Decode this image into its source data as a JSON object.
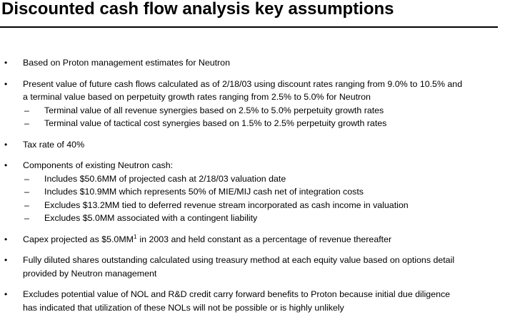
{
  "title": "Discounted cash flow analysis key assumptions",
  "items": [
    {
      "lines": [
        "Based on Proton management estimates for Neutron"
      ]
    },
    {
      "lines": [
        "Present value of future cash flows calculated as of 2/18/03 using discount rates ranging from 9.0% to 10.5% and",
        "a terminal value based on perpetuity growth rates ranging from 2.5% to 5.0% for Neutron"
      ],
      "sub": [
        "Terminal value of all revenue synergies based on 2.5% to 5.0% perpetuity growth rates",
        "Terminal value of tactical cost synergies based on 1.5% to 2.5% perpetuity growth rates"
      ]
    },
    {
      "lines": [
        "Tax rate of 40%"
      ]
    },
    {
      "lines": [
        "Components of existing Neutron cash:"
      ],
      "sub": [
        "Includes $50.6MM of projected cash at 2/18/03 valuation date",
        "Includes $10.9MM which represents 50% of MIE/MIJ cash net of integration costs",
        "Excludes $13.2MM tied to deferred revenue stream incorporated as cash income in valuation",
        "Excludes $5.0MM associated with a contingent liability"
      ]
    },
    {
      "lines": [
        "Capex projected as $5.0MM"
      ],
      "superscript": "1",
      "continuation": "in 2003 and held constant as a percentage of revenue thereafter"
    },
    {
      "lines": [
        "Fully diluted shares outstanding calculated using treasury method at each equity value based on options detail",
        "provided by Neutron management"
      ]
    },
    {
      "lines": [
        "Excludes potential value of NOL and R&D credit carry forward benefits to Proton because initial due diligence",
        "has indicated that utilization of these NOLs will not be possible or is highly unlikely"
      ]
    }
  ]
}
